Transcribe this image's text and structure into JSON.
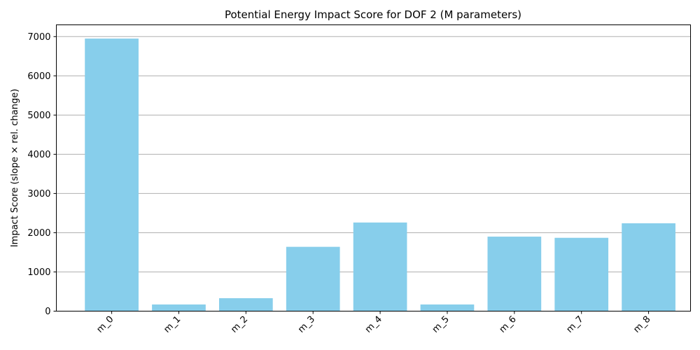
{
  "chart_data": {
    "type": "bar",
    "title": "Potential Energy Impact Score for DOF 2 (M parameters)",
    "xlabel": "",
    "ylabel": "Impact Score (slope × rel. change)",
    "categories": [
      "m_0",
      "m_1",
      "m_2",
      "m_3",
      "m_4",
      "m_5",
      "m_6",
      "m_7",
      "m_8"
    ],
    "values": [
      6950,
      170,
      330,
      1640,
      2260,
      170,
      1900,
      1870,
      2240
    ],
    "ylim": [
      0,
      7300
    ],
    "yticks": [
      0,
      1000,
      2000,
      3000,
      4000,
      5000,
      6000,
      7000
    ],
    "grid": "y-axis",
    "legend": "none",
    "bar_color": "#87ceeb",
    "grid_color": "#b0b0b0"
  }
}
